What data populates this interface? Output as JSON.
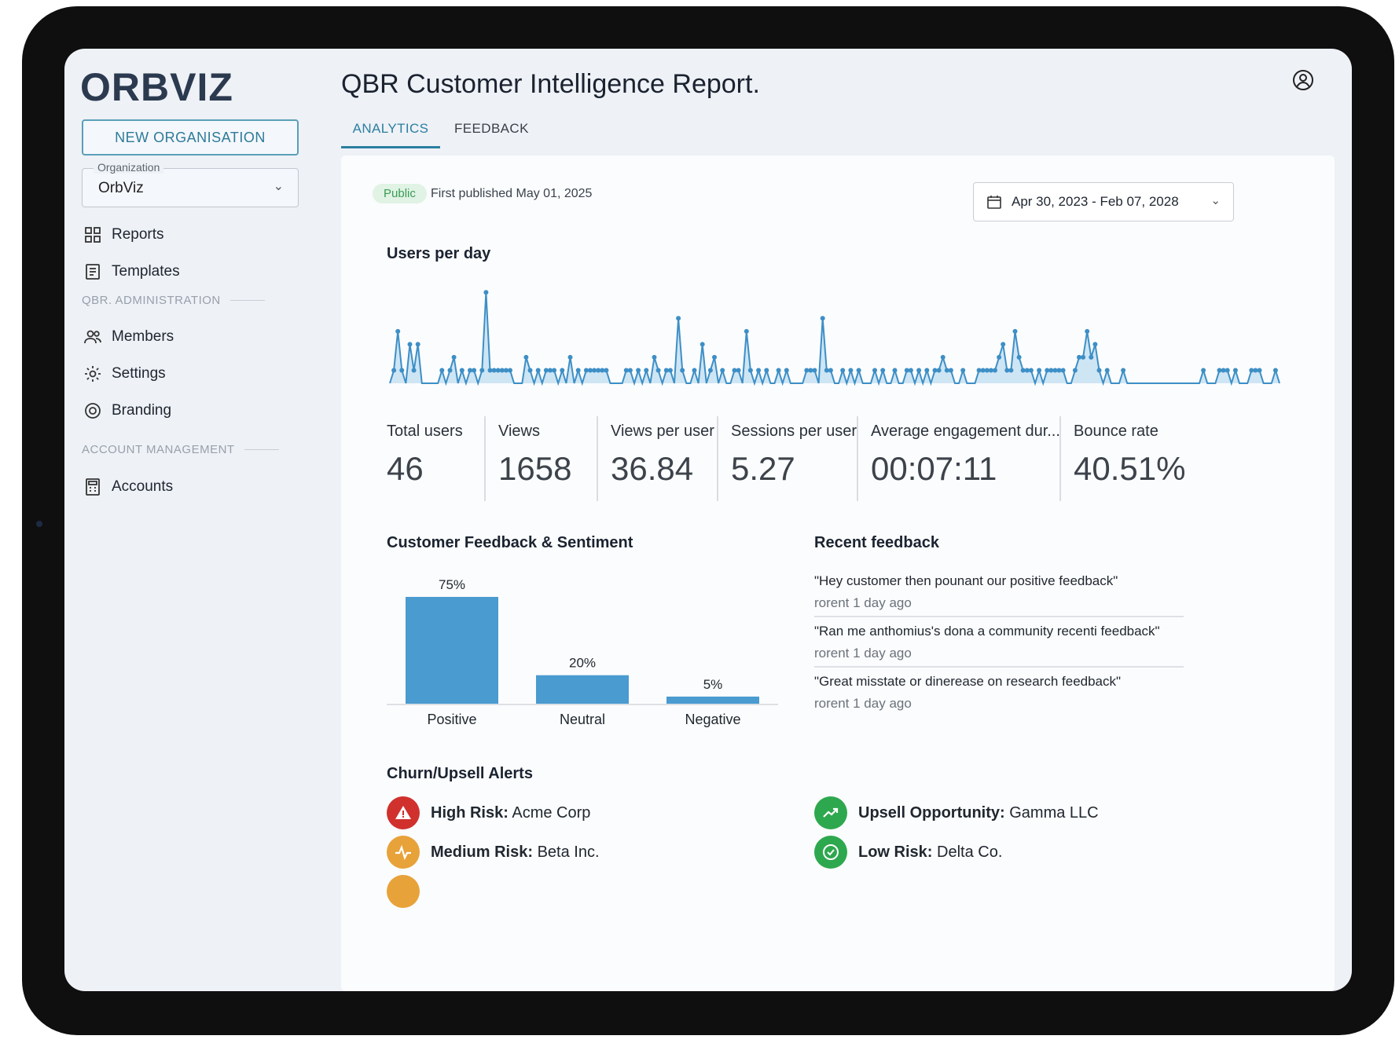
{
  "app": {
    "logo": "ORBVIZ",
    "title": "QBR Customer Intelligence Report."
  },
  "sidebar": {
    "new_org_label": "NEW ORGANISATION",
    "org_field_label": "Organization",
    "org_value": "OrbViz",
    "items": [
      {
        "label": "Reports",
        "icon": "grid-icon"
      },
      {
        "label": "Templates",
        "icon": "document-icon"
      }
    ],
    "section_admin": "QBR. ADMINISTRATION",
    "admin_items": [
      {
        "label": "Members",
        "icon": "people-icon"
      },
      {
        "label": "Settings",
        "icon": "gear-icon"
      },
      {
        "label": "Branding",
        "icon": "palette-icon"
      }
    ],
    "section_account": "ACCOUNT MANAGEMENT",
    "account_items": [
      {
        "label": "Accounts",
        "icon": "calculator-icon"
      }
    ]
  },
  "tabs": {
    "analytics": "ANALYTICS",
    "feedback": "FEEDBACK"
  },
  "report": {
    "badge": "Public",
    "published": "First published May 01, 2025",
    "date_range": "Apr 30, 2023 - Feb 07, 2028"
  },
  "users_chart_title": "Users per day",
  "chart_data": [
    {
      "type": "area",
      "title": "Users per day",
      "values": [
        0,
        1,
        4,
        1,
        0,
        3,
        1,
        3,
        0,
        0,
        0,
        0,
        0,
        1,
        0,
        1,
        2,
        0,
        1,
        0,
        1,
        1,
        0,
        1,
        7,
        1,
        1,
        1,
        1,
        1,
        1,
        0,
        0,
        0,
        2,
        1,
        0,
        1,
        0,
        1,
        1,
        1,
        0,
        1,
        0,
        2,
        0,
        1,
        0,
        1,
        1,
        1,
        1,
        1,
        1,
        0,
        0,
        0,
        0,
        1,
        1,
        0,
        1,
        0,
        1,
        0,
        2,
        1,
        0,
        1,
        1,
        0,
        5,
        1,
        0,
        0,
        1,
        0,
        3,
        0,
        1,
        2,
        0,
        1,
        0,
        0,
        1,
        1,
        0,
        4,
        1,
        0,
        1,
        0,
        1,
        0,
        0,
        1,
        0,
        1,
        0,
        0,
        0,
        0,
        1,
        1,
        1,
        0,
        5,
        1,
        1,
        0,
        0,
        1,
        0,
        1,
        0,
        1,
        0,
        0,
        0,
        1,
        0,
        1,
        0,
        0,
        1,
        0,
        0,
        1,
        1,
        0,
        1,
        0,
        1,
        0,
        1,
        1,
        2,
        1,
        1,
        0,
        0,
        1,
        0,
        0,
        0,
        1,
        1,
        1,
        1,
        1,
        2,
        3,
        1,
        1,
        4,
        2,
        1,
        1,
        1,
        0,
        1,
        0,
        1,
        1,
        1,
        1,
        1,
        0,
        0,
        1,
        2,
        2,
        4,
        2,
        3,
        1,
        0,
        1,
        0,
        0,
        0,
        1,
        0,
        0,
        0,
        0,
        0,
        0,
        0,
        0,
        0,
        0,
        0,
        0,
        0,
        0,
        0,
        0,
        0,
        0,
        0,
        1,
        0,
        0,
        0,
        1,
        1,
        1,
        0,
        1,
        0,
        0,
        0,
        1,
        1,
        1,
        0,
        0,
        0,
        1,
        0
      ],
      "ylim": [
        0,
        7.5
      ]
    },
    {
      "type": "bar",
      "title": "Customer Feedback & Sentiment",
      "categories": [
        "Positive",
        "Neutral",
        "Negative"
      ],
      "values": [
        75,
        20,
        5
      ],
      "data_labels": [
        "75%",
        "20%",
        "5%"
      ],
      "ylim": [
        0,
        75
      ],
      "color": "#4a9bd0"
    }
  ],
  "stats": [
    {
      "label": "Total users",
      "value": "46"
    },
    {
      "label": "Views",
      "value": "1658"
    },
    {
      "label": "Views per user",
      "value": "36.84"
    },
    {
      "label": "Sessions per user",
      "value": "5.27"
    },
    {
      "label": "Average engagement dur...",
      "value": "00:07:11"
    },
    {
      "label": "Bounce rate",
      "value": "40.51%"
    }
  ],
  "sentiment_title": "Customer Feedback & Sentiment",
  "recent_feedback": {
    "title": "Recent feedback",
    "items": [
      {
        "quote": "\"Hey customer then pounant our positive feedback\"",
        "time": "rorent 1 day ago"
      },
      {
        "quote": "\"Ran me anthomius's dona a community recenti feedback\"",
        "time": "rorent 1 day ago"
      },
      {
        "quote": "\"Great misstate or dinerease on research feedback\"",
        "time": "rorent 1 day ago"
      }
    ]
  },
  "alerts": {
    "title": "Churn/Upsell Alerts",
    "items": [
      {
        "kind": "High Risk:",
        "company": "Acme Corp",
        "color": "#d0312d",
        "icon": "warning-icon"
      },
      {
        "kind": "Medium Risk:",
        "company": "Beta Inc.",
        "color": "#e8a23a",
        "icon": "pulse-icon"
      },
      {
        "kind": "Upsell Opportunity:",
        "company": "Gamma LLC",
        "color": "#2ea84e",
        "icon": "trend-up-icon"
      },
      {
        "kind": "Low Risk:",
        "company": "Delta Co.",
        "color": "#2ea84e",
        "icon": "shield-check-icon"
      }
    ]
  }
}
